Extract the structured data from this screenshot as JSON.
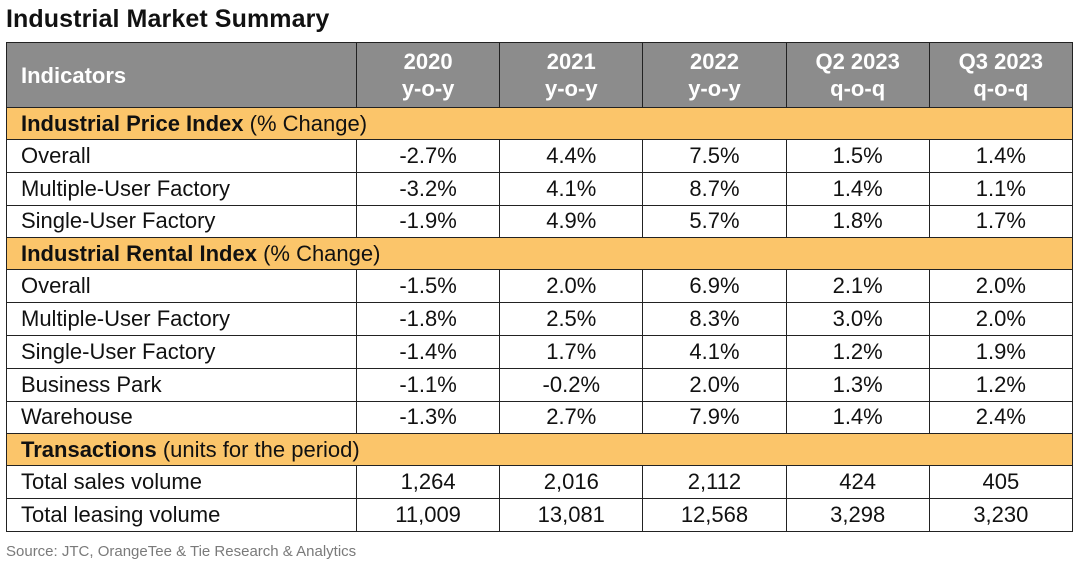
{
  "title": "Industrial Market Summary",
  "header": {
    "indicators": "Indicators",
    "columns": [
      {
        "year": "2020",
        "basis": "y-o-y"
      },
      {
        "year": "2021",
        "basis": "y-o-y"
      },
      {
        "year": "2022",
        "basis": "y-o-y"
      },
      {
        "year": "Q2 2023",
        "basis": "q-o-q"
      },
      {
        "year": "Q3 2023",
        "basis": "q-o-q"
      }
    ]
  },
  "sections": [
    {
      "name": "Industrial Price Index",
      "unit": "(% Change)",
      "rows": [
        {
          "label": "Overall",
          "values": [
            "-2.7%",
            "4.4%",
            "7.5%",
            "1.5%",
            "1.4%"
          ]
        },
        {
          "label": "Multiple-User Factory",
          "values": [
            "-3.2%",
            "4.1%",
            "8.7%",
            "1.4%",
            "1.1%"
          ]
        },
        {
          "label": "Single-User Factory",
          "values": [
            "-1.9%",
            "4.9%",
            "5.7%",
            "1.8%",
            "1.7%"
          ]
        }
      ]
    },
    {
      "name": "Industrial Rental Index",
      "unit": "(% Change)",
      "rows": [
        {
          "label": "Overall",
          "values": [
            "-1.5%",
            "2.0%",
            "6.9%",
            "2.1%",
            "2.0%"
          ]
        },
        {
          "label": "Multiple-User Factory",
          "values": [
            "-1.8%",
            "2.5%",
            "8.3%",
            "3.0%",
            "2.0%"
          ]
        },
        {
          "label": "Single-User Factory",
          "values": [
            "-1.4%",
            "1.7%",
            "4.1%",
            "1.2%",
            "1.9%"
          ]
        },
        {
          "label": "Business Park",
          "values": [
            "-1.1%",
            "-0.2%",
            "2.0%",
            "1.3%",
            "1.2%"
          ]
        },
        {
          "label": "Warehouse",
          "values": [
            "-1.3%",
            "2.7%",
            "7.9%",
            "1.4%",
            "2.4%"
          ]
        }
      ]
    },
    {
      "name": "Transactions",
      "unit": "(units for the period)",
      "rows": [
        {
          "label": "Total sales volume",
          "values": [
            "1,264",
            "2,016",
            "2,112",
            "424",
            "405"
          ]
        },
        {
          "label": "Total leasing volume",
          "values": [
            "11,009",
            "13,081",
            "12,568",
            "3,298",
            "3,230"
          ]
        }
      ]
    }
  ],
  "source": "Source: JTC, OrangeTee & Tie Research & Analytics"
}
